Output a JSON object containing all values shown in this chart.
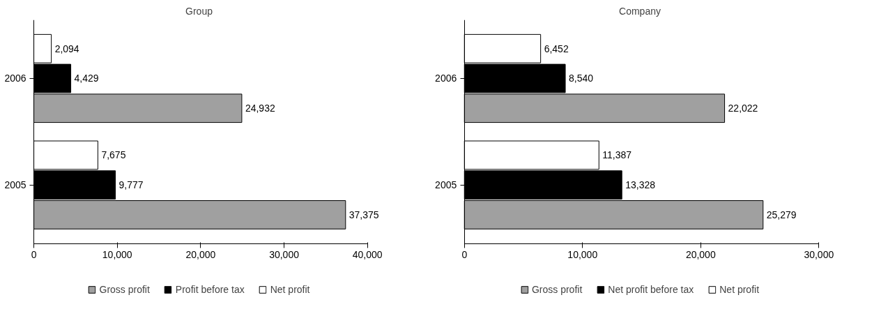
{
  "chart_data": [
    {
      "type": "bar",
      "orientation": "horizontal",
      "title": "Group",
      "categories": [
        "2006",
        "2005"
      ],
      "xlim": [
        0,
        40000
      ],
      "xticks": [
        {
          "value": 0,
          "label": "0"
        },
        {
          "value": 10000,
          "label": "10,000"
        },
        {
          "value": 20000,
          "label": "20,000"
        },
        {
          "value": 30000,
          "label": "30,000"
        },
        {
          "value": 40000,
          "label": "40,000"
        }
      ],
      "legend": "bottom",
      "grid": false,
      "series": [
        {
          "name": "Gross profit",
          "color": "#a0a0a0",
          "values": [
            24932,
            37375
          ],
          "value_labels": [
            "24,932",
            "37,375"
          ]
        },
        {
          "name": "Profit before tax",
          "color": "#000000",
          "values": [
            4429,
            9777
          ],
          "value_labels": [
            "4,429",
            "9,777"
          ]
        },
        {
          "name": "Net profit",
          "color": "#ffffff",
          "values": [
            2094,
            7675
          ],
          "value_labels": [
            "2,094",
            "7,675"
          ]
        }
      ]
    },
    {
      "type": "bar",
      "orientation": "horizontal",
      "title": "Company",
      "categories": [
        "2006",
        "2005"
      ],
      "xlim": [
        0,
        30000
      ],
      "xticks": [
        {
          "value": 0,
          "label": "0"
        },
        {
          "value": 10000,
          "label": "10,000"
        },
        {
          "value": 20000,
          "label": "20,000"
        },
        {
          "value": 30000,
          "label": "30,000"
        }
      ],
      "legend": "bottom",
      "grid": false,
      "series": [
        {
          "name": "Gross profit",
          "color": "#a0a0a0",
          "values": [
            22022,
            25279
          ],
          "value_labels": [
            "22,022",
            "25,279"
          ]
        },
        {
          "name": "Net profit before tax",
          "color": "#000000",
          "values": [
            8540,
            13328
          ],
          "value_labels": [
            "8,540",
            "13,328"
          ]
        },
        {
          "name": "Net profit",
          "color": "#ffffff",
          "values": [
            6452,
            11387
          ],
          "value_labels": [
            "6,452",
            "11,387"
          ]
        }
      ]
    }
  ]
}
